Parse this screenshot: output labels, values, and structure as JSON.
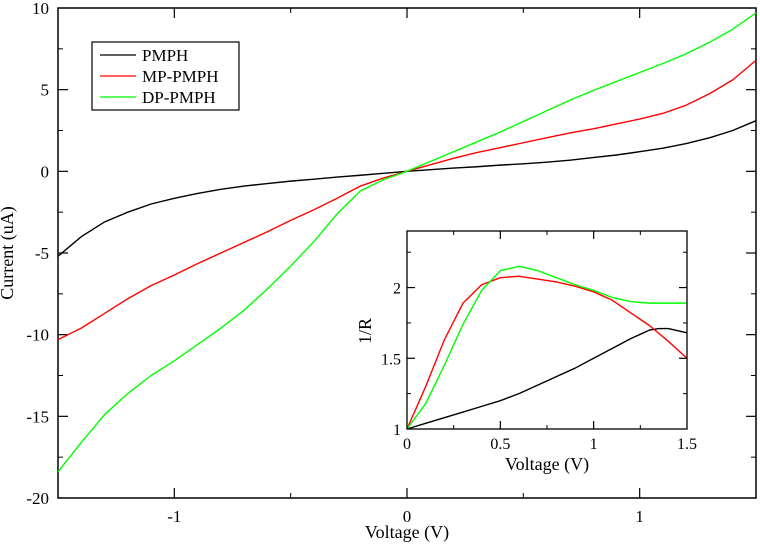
{
  "chart_data": [
    {
      "type": "line",
      "title": "",
      "xlabel": "Voltage (V)",
      "ylabel": "Current (uA)",
      "xlim": [
        -1.5,
        1.5
      ],
      "ylim": [
        -20,
        10
      ],
      "xticks": [
        -1,
        0,
        1
      ],
      "xtick_labels": [
        "-1",
        "0",
        "1"
      ],
      "yticks": [
        -20,
        -15,
        -10,
        -5,
        0,
        5,
        10
      ],
      "ytick_labels": [
        "-20",
        "-15",
        "-10",
        "-5",
        "0",
        "5",
        "10"
      ],
      "legend_position": "top-left",
      "series": [
        {
          "name": "PMPH",
          "color": "#000000",
          "x": [
            -1.5,
            -1.4,
            -1.3,
            -1.2,
            -1.1,
            -1.0,
            -0.9,
            -0.8,
            -0.7,
            -0.6,
            -0.5,
            -0.4,
            -0.3,
            -0.2,
            -0.1,
            0.0,
            0.1,
            0.2,
            0.3,
            0.4,
            0.5,
            0.6,
            0.7,
            0.8,
            0.9,
            1.0,
            1.1,
            1.2,
            1.3,
            1.4,
            1.5
          ],
          "y": [
            -5.2,
            -4.0,
            -3.1,
            -2.5,
            -2.0,
            -1.65,
            -1.35,
            -1.1,
            -0.9,
            -0.75,
            -0.6,
            -0.48,
            -0.35,
            -0.24,
            -0.12,
            0.0,
            0.1,
            0.2,
            0.28,
            0.38,
            0.46,
            0.56,
            0.68,
            0.84,
            1.0,
            1.2,
            1.42,
            1.7,
            2.05,
            2.5,
            3.1
          ]
        },
        {
          "name": "MP-PMPH",
          "color": "#ff0000",
          "x": [
            -1.5,
            -1.4,
            -1.3,
            -1.2,
            -1.1,
            -1.0,
            -0.9,
            -0.8,
            -0.7,
            -0.6,
            -0.5,
            -0.4,
            -0.3,
            -0.2,
            -0.1,
            0.0,
            0.1,
            0.2,
            0.3,
            0.4,
            0.5,
            0.6,
            0.7,
            0.8,
            0.9,
            1.0,
            1.1,
            1.2,
            1.3,
            1.4,
            1.5
          ],
          "y": [
            -10.3,
            -9.6,
            -8.7,
            -7.8,
            -7.0,
            -6.35,
            -5.65,
            -5.0,
            -4.35,
            -3.7,
            -3.0,
            -2.35,
            -1.65,
            -0.9,
            -0.4,
            0.0,
            0.4,
            0.8,
            1.15,
            1.45,
            1.75,
            2.05,
            2.35,
            2.6,
            2.9,
            3.2,
            3.55,
            4.05,
            4.75,
            5.6,
            6.8
          ]
        },
        {
          "name": "DP-PMPH",
          "color": "#00ff00",
          "x": [
            -1.5,
            -1.4,
            -1.3,
            -1.2,
            -1.1,
            -1.0,
            -0.9,
            -0.8,
            -0.7,
            -0.6,
            -0.5,
            -0.4,
            -0.3,
            -0.2,
            -0.1,
            0.0,
            0.1,
            0.2,
            0.3,
            0.4,
            0.5,
            0.6,
            0.7,
            0.8,
            0.9,
            1.0,
            1.1,
            1.2,
            1.3,
            1.4,
            1.5
          ],
          "y": [
            -18.4,
            -16.6,
            -14.9,
            -13.6,
            -12.5,
            -11.6,
            -10.6,
            -9.6,
            -8.5,
            -7.2,
            -5.8,
            -4.3,
            -2.6,
            -1.2,
            -0.5,
            0.0,
            0.6,
            1.2,
            1.8,
            2.4,
            3.05,
            3.7,
            4.35,
            4.95,
            5.5,
            6.05,
            6.6,
            7.2,
            7.9,
            8.7,
            9.7
          ]
        }
      ]
    },
    {
      "type": "line",
      "title": "",
      "xlabel": "Voltage (V)",
      "ylabel": "1/R",
      "xlim": [
        0,
        1.5
      ],
      "ylim": [
        1,
        2.4
      ],
      "xticks": [
        0,
        0.5,
        1,
        1.5
      ],
      "xtick_labels": [
        "0",
        "0.5",
        "1",
        "1.5"
      ],
      "yticks": [
        1,
        1.5,
        2
      ],
      "ytick_labels": [
        "1",
        "1.5",
        "2"
      ],
      "series": [
        {
          "name": "PMPH",
          "color": "#000000",
          "x": [
            0,
            0.1,
            0.2,
            0.3,
            0.4,
            0.5,
            0.6,
            0.7,
            0.8,
            0.9,
            1.0,
            1.1,
            1.2,
            1.3,
            1.35,
            1.4,
            1.5
          ],
          "y": [
            1.0,
            1.04,
            1.08,
            1.12,
            1.16,
            1.2,
            1.25,
            1.31,
            1.37,
            1.43,
            1.5,
            1.57,
            1.64,
            1.7,
            1.71,
            1.71,
            1.68
          ]
        },
        {
          "name": "MP-PMPH",
          "color": "#ff0000",
          "x": [
            0,
            0.1,
            0.2,
            0.3,
            0.4,
            0.5,
            0.6,
            0.7,
            0.8,
            0.9,
            1.0,
            1.1,
            1.2,
            1.3,
            1.4,
            1.5
          ],
          "y": [
            1.0,
            1.3,
            1.63,
            1.89,
            2.02,
            2.07,
            2.08,
            2.06,
            2.04,
            2.01,
            1.97,
            1.91,
            1.82,
            1.73,
            1.62,
            1.5
          ]
        },
        {
          "name": "DP-PMPH",
          "color": "#00ff00",
          "x": [
            0,
            0.1,
            0.2,
            0.3,
            0.4,
            0.5,
            0.6,
            0.7,
            0.8,
            0.9,
            1.0,
            1.1,
            1.2,
            1.3,
            1.4,
            1.5
          ],
          "y": [
            1.0,
            1.18,
            1.45,
            1.74,
            1.98,
            2.12,
            2.15,
            2.12,
            2.07,
            2.02,
            1.98,
            1.93,
            1.9,
            1.89,
            1.89,
            1.89
          ]
        }
      ]
    }
  ]
}
